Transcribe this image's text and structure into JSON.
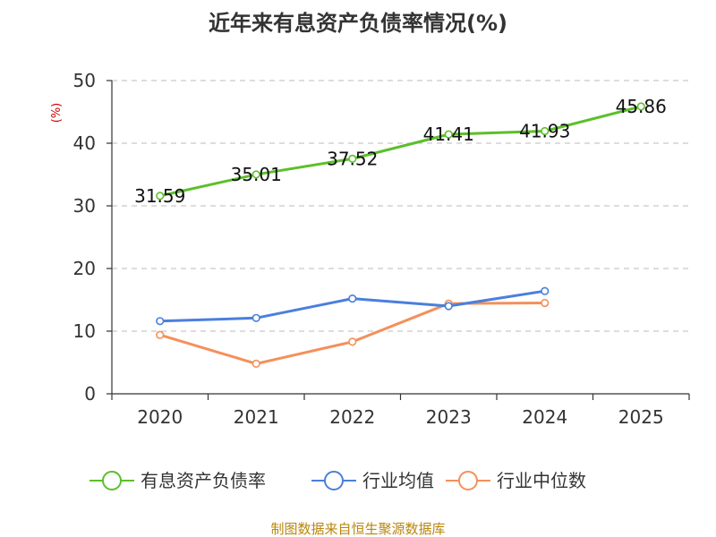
{
  "title": "近年来有息资产负债率情况(%)",
  "source": "制图数据来自恒生聚源数据库",
  "chart_data": {
    "type": "line",
    "title": "近年来有息资产负债率情况(%)",
    "ylabel": "(%)",
    "xlabel": "",
    "categories": [
      "2020",
      "2021",
      "2022",
      "2023",
      "2024",
      "2025"
    ],
    "ylim": [
      0,
      50
    ],
    "yticks": [
      0,
      10,
      20,
      30,
      40,
      50
    ],
    "grid": true,
    "legend_position": "bottom",
    "series": [
      {
        "name": "有息资产负债率",
        "color": "#5cbf2a",
        "values": [
          31.59,
          35.01,
          37.52,
          41.41,
          41.93,
          45.86
        ],
        "labels": [
          "31.59",
          "35.01",
          "37.52",
          "41.41",
          "41.93",
          "45.86"
        ],
        "show_labels": true
      },
      {
        "name": "行业均值",
        "color": "#4a7fdc",
        "values": [
          11.6,
          12.1,
          15.2,
          14.0,
          16.4,
          null
        ],
        "show_labels": false
      },
      {
        "name": "行业中位数",
        "color": "#f4905a",
        "values": [
          9.4,
          4.8,
          8.3,
          14.4,
          14.5,
          null
        ],
        "show_labels": false
      }
    ]
  }
}
